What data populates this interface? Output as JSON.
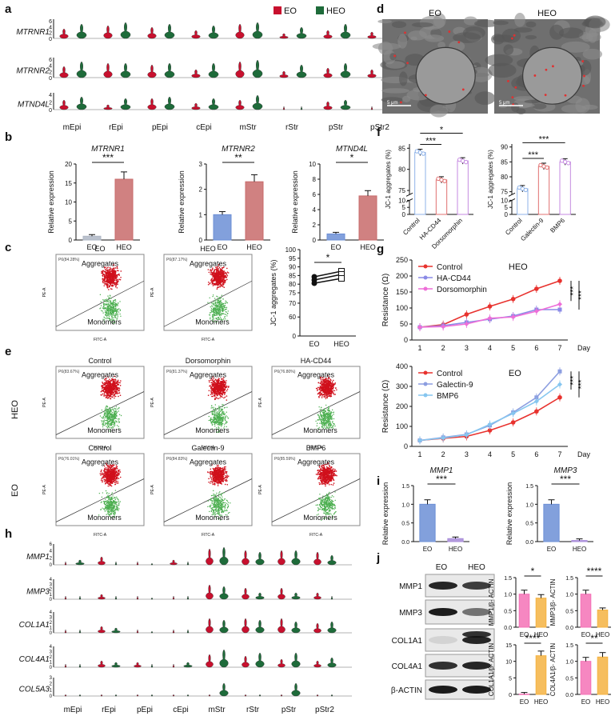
{
  "colors": {
    "eo": "#c8102e",
    "heo": "#1e6b3a",
    "blue": "#6c8fd6",
    "pink": "#ff66cc",
    "orange": "#f5a623",
    "magenta": "#ff5fa8",
    "grey": "#aeb6c4",
    "salmon": "#c86b6b"
  },
  "panel_letters": [
    "a",
    "b",
    "c",
    "d",
    "e",
    "f",
    "g",
    "h",
    "i",
    "j"
  ],
  "legend": {
    "eo": "EO",
    "heo": "HEO"
  },
  "panel_a": {
    "genes": [
      "MTRNR1",
      "MTRNR2",
      "MTND4L"
    ],
    "celltypes": [
      "mEpi",
      "rEpi",
      "pEpi",
      "cEpi",
      "mStr",
      "rStr",
      "pStr",
      "pStr2"
    ],
    "ticks": [
      [
        "6",
        "4",
        "2",
        "0"
      ],
      [
        "6",
        "4",
        "2",
        "0"
      ],
      [
        "4",
        "2",
        "0"
      ]
    ]
  },
  "panel_b": {
    "charts": [
      {
        "title": "MTRNR1",
        "ylabel": "Relative expression",
        "categories": [
          "EO",
          "HEO"
        ],
        "values": [
          1,
          16
        ],
        "ylim": [
          0,
          20
        ],
        "ticks": [
          "0",
          "5",
          "10",
          "15",
          "20"
        ],
        "sig": "***"
      },
      {
        "title": "MTRNR2",
        "ylabel": "Relative expression",
        "categories": [
          "EO",
          "HEO"
        ],
        "values": [
          1,
          2.3
        ],
        "ylim": [
          0,
          3
        ],
        "ticks": [
          "0",
          "1",
          "2",
          "3"
        ],
        "sig": "**"
      },
      {
        "title": "MTND4L",
        "ylabel": "Relative expression",
        "categories": [
          "EO",
          "HEO"
        ],
        "values": [
          0.8,
          5.8
        ],
        "ylim": [
          0,
          10
        ],
        "ticks": [
          "0",
          "2",
          "4",
          "6",
          "8",
          "10"
        ],
        "sig": "*"
      }
    ]
  },
  "panel_c": {
    "flow": [
      {
        "title": "EO",
        "gate": "P6(84.28%)",
        "top": "Aggregates",
        "bottom": "Monomers",
        "xaxis": "FITC-A",
        "yaxis": "PE-A"
      },
      {
        "title": "HEO",
        "gate": "P6(87.17%)",
        "top": "Aggregates",
        "bottom": "Monomers",
        "xaxis": "FITC-A",
        "yaxis": "PE-A"
      }
    ],
    "paired": {
      "ylabel": "JC-1 aggregates (%)",
      "ticks": [
        "100",
        "95",
        "90",
        "85",
        "80",
        "75",
        "70",
        "60",
        "0"
      ],
      "categories": [
        "EO",
        "HEO"
      ],
      "sig": "*"
    }
  },
  "panel_d": {
    "images": [
      {
        "title": "EO",
        "scale": "5 μm"
      },
      {
        "title": "HEO",
        "scale": "5 μm"
      }
    ]
  },
  "panel_e": {
    "row_labels": [
      "HEO",
      "EO"
    ],
    "flow": [
      {
        "title": "Control",
        "gate": "P6(83.67%)",
        "top": "Aggregates",
        "bottom": "Monomers",
        "xaxis": "FITC-A",
        "yaxis": "PE-A"
      },
      {
        "title": "Dorsomorphin",
        "gate": "P6(81.37%)",
        "top": "Aggregates",
        "bottom": "Monomers",
        "xaxis": "FITC-A",
        "yaxis": "PE-A"
      },
      {
        "title": "HA-CD44",
        "gate": "P6(76.80%)",
        "top": "Aggregates",
        "bottom": "Monomers",
        "xaxis": "FITC-A",
        "yaxis": "PE-A"
      },
      {
        "title": "Control",
        "gate": "P6(76.01%)",
        "top": "Aggregates",
        "bottom": "Monomers",
        "xaxis": "FITC-A",
        "yaxis": "PE-A"
      },
      {
        "title": "Galectin-9",
        "gate": "P6(84.83%)",
        "top": "Aggregates",
        "bottom": "Monomers",
        "xaxis": "FITC-A",
        "yaxis": "PE-A"
      },
      {
        "title": "BMP6",
        "gate": "P6(85.59%)",
        "top": "Aggregates",
        "bottom": "Monomers",
        "xaxis": "FITC-A",
        "yaxis": "PE-A"
      }
    ]
  },
  "panel_f": {
    "charts": [
      {
        "ylabel": "JC-1 aggregates (%)",
        "categories": [
          "Control",
          "HA-CD44",
          "Dorsomorphin"
        ],
        "values": [
          84,
          77.5,
          82
        ],
        "ticks": [
          "85",
          "80",
          "75",
          "10",
          "5",
          "0"
        ],
        "sig_top": "*",
        "sig_low": "***"
      },
      {
        "ylabel": "JC-1 aggregates (%)",
        "categories": [
          "Control",
          "Galectin-9",
          "BMP6"
        ],
        "values": [
          76,
          83.5,
          85
        ],
        "ticks": [
          "90",
          "85",
          "80",
          "75",
          "10",
          "5",
          "0"
        ],
        "sig_top": "***",
        "sig_low": "***"
      }
    ]
  },
  "panel_g": {
    "charts": [
      {
        "group": "HEO",
        "ylabel": "Resistance (Ω)",
        "x": [
          1,
          2,
          3,
          4,
          5,
          6,
          7
        ],
        "xlabel": "Day",
        "ylim": [
          0,
          250
        ],
        "ticks": [
          "0",
          "50",
          "100",
          "150",
          "200",
          "250"
        ],
        "series": [
          {
            "name": "Control",
            "values": [
              40,
              48,
              80,
              105,
              128,
              160,
              185
            ]
          },
          {
            "name": "HA-CD44",
            "values": [
              40,
              45,
              55,
              65,
              75,
              95,
              95
            ]
          },
          {
            "name": "Dorsomorphin",
            "values": [
              40,
              42,
              50,
              68,
              72,
              90,
              112
            ]
          }
        ],
        "sig": [
          "***",
          "***"
        ]
      },
      {
        "group": "EO",
        "ylabel": "Resistance (Ω)",
        "x": [
          1,
          2,
          3,
          4,
          5,
          6,
          7
        ],
        "xlabel": "Day",
        "ylim": [
          0,
          400
        ],
        "ticks": [
          "0",
          "100",
          "200",
          "300",
          "400"
        ],
        "series": [
          {
            "name": "Control",
            "values": [
              30,
              40,
              50,
              80,
              120,
              175,
              245
            ]
          },
          {
            "name": "Galectin-9",
            "values": [
              30,
              45,
              60,
              105,
              170,
              245,
              375
            ]
          },
          {
            "name": "BMP6",
            "values": [
              30,
              42,
              58,
              110,
              165,
              225,
              310
            ]
          }
        ],
        "sig": [
          "***",
          "***"
        ]
      }
    ]
  },
  "panel_h": {
    "genes": [
      "MMP1",
      "MMP3",
      "COL1A1",
      "COL4A1",
      "COL5A3"
    ],
    "celltypes": [
      "mEpi",
      "rEpi",
      "pEpi",
      "cEpi",
      "mStr",
      "rStr",
      "pStr",
      "pStr2"
    ],
    "ticks": [
      [
        "6",
        "4",
        "2",
        "0"
      ],
      [
        "4",
        "3",
        "2",
        "1",
        "0"
      ],
      [
        "4",
        "3",
        "2",
        "1",
        "0"
      ],
      [
        "4",
        "3",
        "2",
        "1",
        "0"
      ],
      [
        "3",
        "2",
        "1",
        "0"
      ]
    ]
  },
  "panel_i": {
    "charts": [
      {
        "title": "MMP1",
        "ylabel": "Relative expression",
        "categories": [
          "EO",
          "HEO"
        ],
        "values": [
          1.0,
          0.08
        ],
        "ylim": [
          0,
          1.5
        ],
        "ticks": [
          "0.0",
          "0.5",
          "1.0",
          "1.5"
        ],
        "sig": "***"
      },
      {
        "title": "MMP3",
        "ylabel": "Relative expression",
        "categories": [
          "EO",
          "HEO"
        ],
        "values": [
          1.0,
          0.03
        ],
        "ylim": [
          0,
          1.5
        ],
        "ticks": [
          "0.0",
          "0.5",
          "1.0",
          "1.5"
        ],
        "sig": "***"
      }
    ]
  },
  "panel_j": {
    "lanes": [
      "EO",
      "HEO"
    ],
    "bands": [
      "MMP1",
      "MMP3",
      "COL1A1",
      "COL4A1",
      "β-ACTIN"
    ],
    "charts": [
      {
        "ylabel": "MMP1/β- ACTIN",
        "categories": [
          "EO",
          "HEO"
        ],
        "values": [
          1.0,
          0.88
        ],
        "ylim": [
          0,
          1.5
        ],
        "ticks": [
          "0.0",
          "0.5",
          "1.0",
          "1.5"
        ],
        "sig": "*"
      },
      {
        "ylabel": "MMP3/β- ACTIN",
        "categories": [
          "EO",
          "HEO"
        ],
        "values": [
          1.0,
          0.52
        ],
        "ylim": [
          0,
          1.5
        ],
        "ticks": [
          "0.0",
          "0.5",
          "1.0",
          "1.5"
        ],
        "sig": "****"
      },
      {
        "ylabel": "COL1A1/β- ACTIN",
        "categories": [
          "EO",
          "HEO"
        ],
        "values": [
          0.1,
          11.7
        ],
        "ylim": [
          0,
          15
        ],
        "ticks": [
          "0",
          "5",
          "10",
          "15"
        ],
        "sig": "****"
      },
      {
        "ylabel": "COL4A1/β- ACTIN",
        "categories": [
          "EO",
          "HEO"
        ],
        "values": [
          1.0,
          1.13
        ],
        "ylim": [
          0,
          1.5
        ],
        "ticks": [
          "0.0",
          "0.5",
          "1.0",
          "1.5"
        ],
        "sig": "**"
      }
    ]
  }
}
